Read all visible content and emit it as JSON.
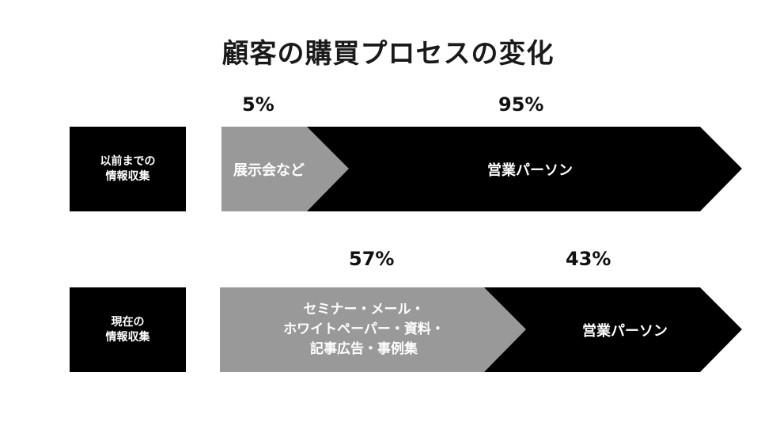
{
  "title": "顧客の購買プロセスの変化",
  "rows": [
    {
      "label": "以前までの\n情報収集",
      "segments": [
        {
          "text": "展示会など",
          "percent": "5%",
          "color": "#999999"
        },
        {
          "text": "営業パーソン",
          "percent": "95%",
          "color": "#000000"
        }
      ]
    },
    {
      "label": "現在の\n情報収集",
      "segments": [
        {
          "text": "セミナー・メール・\nホワイトペーパー・資料・\n記事広告・事例集",
          "percent": "57%",
          "color": "#999999"
        },
        {
          "text": "営業パーソン",
          "percent": "43%",
          "color": "#000000"
        }
      ]
    }
  ]
}
